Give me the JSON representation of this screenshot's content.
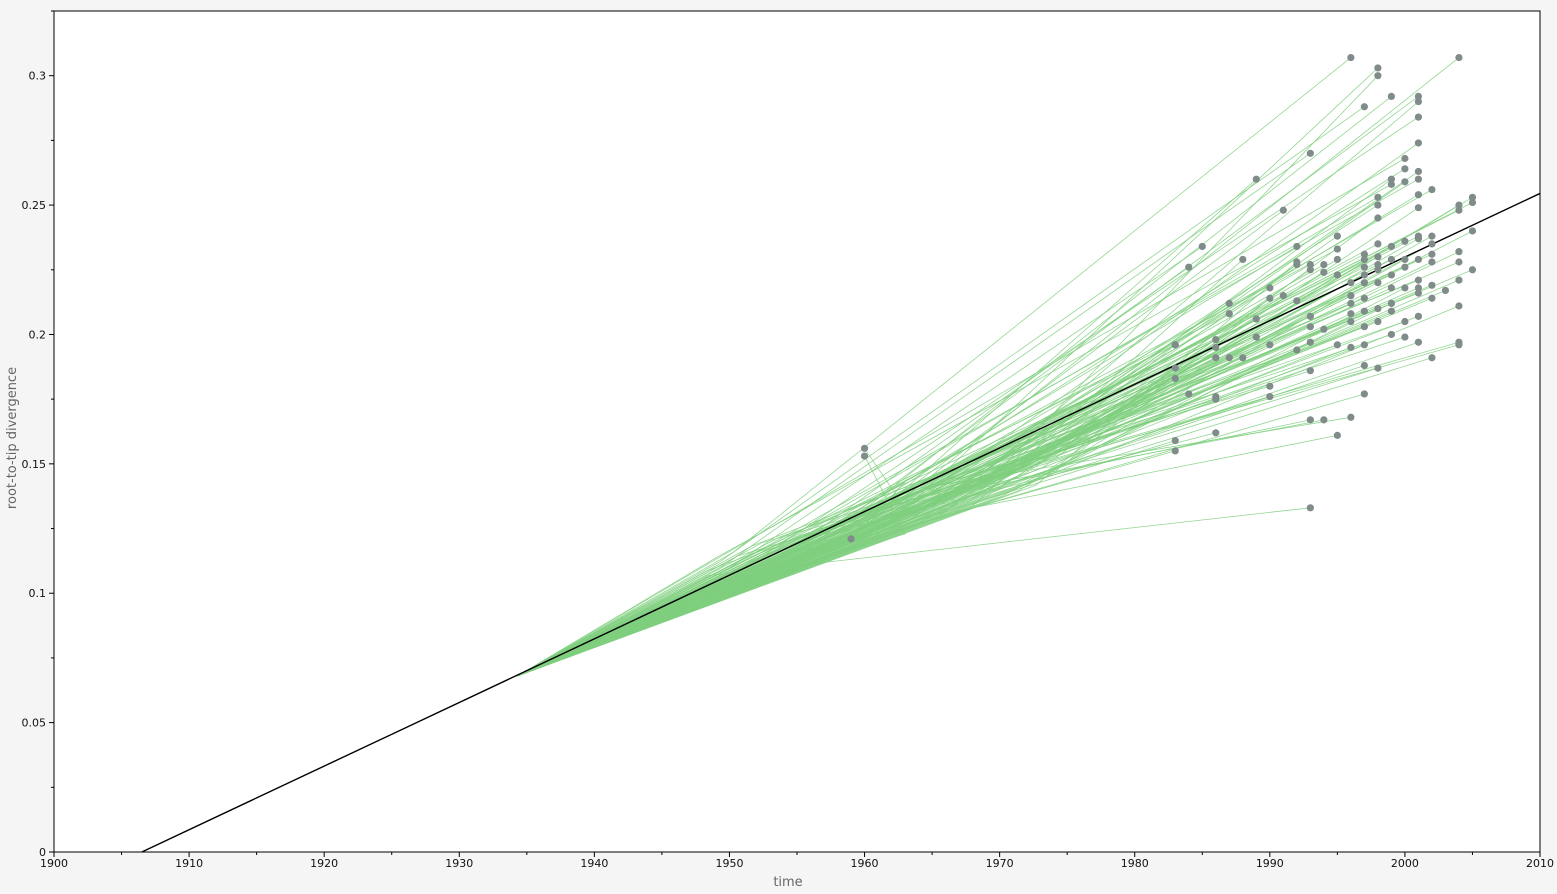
{
  "window": {
    "background": "#f5f5f5"
  },
  "chart_data": {
    "type": "scatter",
    "title": "",
    "xlabel": "time",
    "ylabel": "root-to-tip divergence",
    "xlim": [
      1900,
      2010
    ],
    "ylim": [
      0,
      0.325
    ],
    "x_ticks": [
      1900,
      1910,
      1920,
      1930,
      1940,
      1950,
      1960,
      1970,
      1980,
      1990,
      2000,
      2010
    ],
    "x_tick_labels": [
      "1900",
      "1910",
      "1920",
      "1930",
      "1940",
      "1950",
      "1960",
      "1970",
      "1980",
      "1990",
      "2000",
      "2010"
    ],
    "y_ticks": [
      0,
      0.05,
      0.1,
      0.15,
      0.2,
      0.25,
      0.3
    ],
    "y_tick_labels": [
      "0",
      "0.05",
      "0.1",
      "0.15",
      "0.2",
      "0.25",
      "0.3"
    ],
    "grid": false,
    "colors": {
      "points": "#7f8c8a",
      "lineage_lines": "#7fcf7f",
      "regression_line": "#000000",
      "plot_bg": "#ffffff"
    },
    "regression": {
      "x": [
        1906.5,
        2010
      ],
      "y": [
        0,
        0.2545
      ]
    },
    "root_point": {
      "x": 1934.3,
      "y": 0.068
    },
    "series": [
      {
        "x": [
          1959,
          1960,
          1960,
          1983,
          1983,
          1983,
          1983,
          1983,
          1983,
          1984,
          1984,
          1985,
          1986,
          1986,
          1986,
          1986,
          1986,
          1986,
          1987,
          1987,
          1987,
          1988,
          1988,
          1989,
          1989,
          1989,
          1990,
          1990,
          1990,
          1990,
          1990,
          1991,
          1991,
          1992,
          1992,
          1992,
          1992,
          1992,
          1993,
          1993,
          1993,
          1993,
          1993,
          1993,
          1993,
          1993,
          1993,
          1994,
          1994,
          1994,
          1994,
          1995,
          1995,
          1995,
          1995,
          1995,
          1995,
          1996,
          1996,
          1996,
          1996,
          1996,
          1996,
          1996,
          1996,
          1997,
          1997,
          1997,
          1997,
          1997,
          1997,
          1997,
          1997,
          1997,
          1997,
          1997,
          1997,
          1998,
          1998,
          1998,
          1998,
          1998,
          1998,
          1998,
          1998,
          1998,
          1998,
          1998,
          1998,
          1998,
          1999,
          1999,
          1999,
          1999,
          1999,
          1999,
          1999,
          1999,
          1999,
          1999,
          2000,
          2000,
          2000,
          2000,
          2000,
          2000,
          2000,
          2000,
          2000,
          2001,
          2001,
          2001,
          2001,
          2001,
          2001,
          2001,
          2001,
          2001,
          2001,
          2001,
          2001,
          2001,
          2001,
          2001,
          2001,
          2002,
          2002,
          2002,
          2002,
          2002,
          2002,
          2002,
          2002,
          2003,
          2004,
          2004,
          2004,
          2004,
          2004,
          2004,
          2004,
          2004,
          2004,
          2005,
          2005,
          2005,
          2005
        ],
        "y": [
          0.121,
          0.156,
          0.153,
          0.196,
          0.187,
          0.183,
          0.159,
          0.155,
          0.196,
          0.226,
          0.177,
          0.234,
          0.198,
          0.195,
          0.191,
          0.176,
          0.175,
          0.162,
          0.212,
          0.208,
          0.191,
          0.229,
          0.191,
          0.26,
          0.206,
          0.199,
          0.218,
          0.214,
          0.196,
          0.18,
          0.176,
          0.248,
          0.215,
          0.234,
          0.227,
          0.228,
          0.213,
          0.194,
          0.27,
          0.227,
          0.225,
          0.207,
          0.203,
          0.197,
          0.186,
          0.167,
          0.133,
          0.227,
          0.224,
          0.202,
          0.167,
          0.238,
          0.233,
          0.229,
          0.223,
          0.196,
          0.161,
          0.307,
          0.22,
          0.215,
          0.212,
          0.208,
          0.205,
          0.195,
          0.168,
          0.288,
          0.231,
          0.229,
          0.226,
          0.223,
          0.22,
          0.214,
          0.209,
          0.203,
          0.196,
          0.188,
          0.177,
          0.303,
          0.3,
          0.253,
          0.25,
          0.245,
          0.235,
          0.23,
          0.227,
          0.225,
          0.22,
          0.21,
          0.205,
          0.187,
          0.292,
          0.26,
          0.258,
          0.234,
          0.229,
          0.223,
          0.218,
          0.212,
          0.209,
          0.2,
          0.268,
          0.264,
          0.259,
          0.236,
          0.226,
          0.218,
          0.205,
          0.199,
          0.229,
          0.292,
          0.29,
          0.284,
          0.274,
          0.263,
          0.26,
          0.254,
          0.249,
          0.238,
          0.237,
          0.229,
          0.221,
          0.218,
          0.216,
          0.207,
          0.197,
          0.256,
          0.238,
          0.235,
          0.231,
          0.228,
          0.219,
          0.214,
          0.191,
          0.217,
          0.307,
          0.25,
          0.248,
          0.232,
          0.228,
          0.221,
          0.211,
          0.197,
          0.196,
          0.253,
          0.251,
          0.24,
          0.225
        ]
      }
    ]
  }
}
